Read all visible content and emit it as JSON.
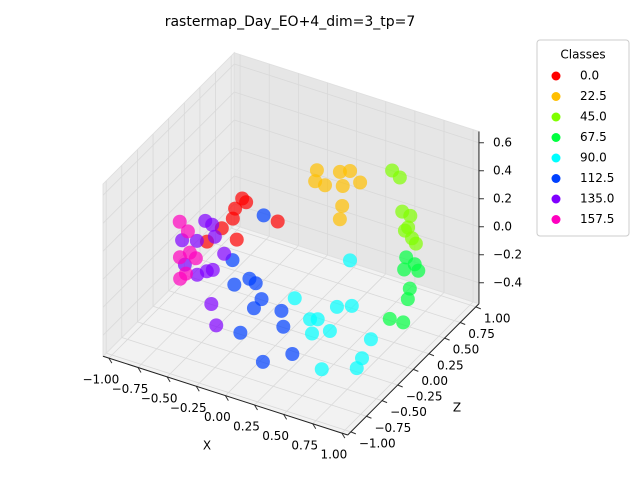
{
  "chart_data": {
    "type": "scatter3d",
    "title": "rastermap_Day_EO+4_dim=3_tp=7",
    "xlabel": "X",
    "ylabel": "Z",
    "xlim": [
      -1.05,
      1.05
    ],
    "ylim": [
      -1.05,
      1.05
    ],
    "zlim": [
      -0.55,
      0.68
    ],
    "xticks": [
      {
        "value": -1,
        "label": "−1.00"
      },
      {
        "value": -0.75,
        "label": "−0.75"
      },
      {
        "value": -0.5,
        "label": "−0.50"
      },
      {
        "value": -0.25,
        "label": "−0.25"
      },
      {
        "value": 0,
        "label": "0.00"
      },
      0.25,
      {
        "value": 0.5,
        "label": "0.50"
      },
      0.75,
      {
        "value": 1,
        "label": "1.00"
      }
    ],
    "yticks": [
      {
        "value": -1,
        "label": "−1.00"
      },
      {
        "value": -0.75,
        "label": "−0.75"
      },
      {
        "value": -0.5,
        "label": "−0.50"
      },
      {
        "value": -0.25,
        "label": "−0.25"
      },
      {
        "value": 0,
        "label": "0.00"
      },
      0.25,
      {
        "value": 0.5,
        "label": "0.50"
      },
      0.75,
      {
        "value": 1,
        "label": "1.00"
      }
    ],
    "zticks": [
      {
        "value": -0.4,
        "label": "−0.4"
      },
      {
        "value": -0.2,
        "label": "−0.2"
      },
      {
        "value": 0,
        "label": "0.0"
      },
      0.2,
      0.4,
      0.6
    ],
    "grid": true,
    "legend_title": "Classes",
    "legend_position": "upper-right-outside",
    "series": [
      {
        "name": "0.0",
        "color": "#ff0000",
        "x": [
          -0.58,
          -0.56,
          -0.53,
          -0.51,
          -0.53,
          -0.71,
          -0.2,
          -0.61
        ],
        "y": [
          0.3,
          0.15,
          0.27,
          0.02,
          0.12,
          -0.02,
          0.16,
          0.03
        ],
        "z": [
          0.1,
          0.1,
          0.1,
          0.1,
          -0.1,
          -0.1,
          0.1,
          0
        ]
      },
      {
        "name": "22.5",
        "color": "#ffbf00",
        "x": [
          0.04,
          0.2,
          0.26,
          0.19,
          0.31,
          0.4,
          0.3,
          0.28,
          0.1
        ],
        "y": [
          0.34,
          0.41,
          0.46,
          0.19,
          0.25,
          0.36,
          0.26,
          0.26,
          0.2
        ],
        "z": [
          0.45,
          0.45,
          0.45,
          0.45,
          0.45,
          0.45,
          0.3,
          0.2,
          0.45
        ]
      },
      {
        "name": "45.0",
        "color": "#80ff00",
        "x": [
          0.53,
          0.58,
          0.59,
          0.67,
          0.64,
          0.69,
          0.75,
          0.64
        ],
        "y": [
          0.63,
          0.66,
          0.68,
          0.66,
          0.63,
          0.65,
          0.6,
          0.68
        ],
        "z": [
          0.45,
          0.4,
          0.15,
          0.15,
          0.05,
          0,
          0,
          0.05
        ]
      },
      {
        "name": "67.5",
        "color": "#00ff40",
        "x": [
          0.64,
          0.74,
          0.66,
          0.76,
          0.73,
          0.74,
          0.66,
          0.77
        ],
        "y": [
          0.65,
          0.6,
          0.58,
          0.62,
          0.54,
          0.49,
          0.35,
          0.36
        ],
        "z": [
          -0.15,
          -0.15,
          -0.2,
          -0.2,
          -0.3,
          -0.35,
          -0.45,
          -0.45
        ]
      },
      {
        "name": "90.0",
        "color": "#00ffff",
        "x": [
          0.34,
          0,
          0.33,
          0.42,
          0.19,
          0.24,
          0.35,
          0.25,
          0.67,
          0.69,
          0.72,
          0.5
        ],
        "y": [
          0.31,
          0.06,
          0.12,
          0.19,
          -0.05,
          -0.02,
          -0.03,
          -0.13,
          0.03,
          -0.15,
          -0.29,
          -0.44
        ],
        "z": [
          -0.1,
          -0.35,
          -0.35,
          -0.35,
          -0.4,
          -0.4,
          -0.45,
          -0.45,
          -0.45,
          -0.5,
          -0.5,
          -0.5
        ]
      },
      {
        "name": "112.5",
        "color": "#0040ff",
        "x": [
          -0.24,
          -0.47,
          -0.33,
          -0.26,
          -0.39,
          -0.21,
          -0.2,
          -0.05,
          0.02,
          -0.22,
          0.21,
          0.07
        ],
        "y": [
          0.01,
          -0.06,
          -0.05,
          -0.08,
          -0.18,
          -0.08,
          -0.22,
          -0.06,
          -0.16,
          -0.4,
          -0.37,
          -0.58
        ],
        "z": [
          0.2,
          -0.15,
          -0.25,
          -0.25,
          -0.25,
          -0.35,
          -0.35,
          -0.4,
          -0.45,
          -0.45,
          -0.5,
          -0.5
        ]
      },
      {
        "name": "135.0",
        "color": "#8000ff",
        "x": [
          -0.72,
          -0.65,
          -0.6,
          -0.69,
          -0.79,
          -0.52,
          -0.75,
          -0.58,
          -0.61,
          -0.65,
          -0.55,
          -0.47
        ],
        "y": [
          -0.03,
          -0.05,
          -0.1,
          -0.22,
          -0.27,
          -0.1,
          -0.3,
          -0.17,
          -0.21,
          -0.29,
          -0.25,
          -0.32
        ],
        "z": [
          0.05,
          0.05,
          0,
          0,
          0,
          -0.1,
          -0.15,
          -0.2,
          -0.2,
          -0.2,
          -0.4,
          -0.5
        ]
      },
      {
        "name": "157.5",
        "color": "#ff00bf",
        "x": [
          -0.88,
          -0.81,
          -0.83,
          -0.72,
          -0.73,
          -0.78,
          -0.75
        ],
        "y": [
          -0.14,
          -0.14,
          -0.23,
          -0.18,
          -0.32,
          -0.32,
          -0.22
        ],
        "z": [
          0.05,
          0,
          -0.15,
          -0.15,
          -0.2,
          -0.25,
          -0.1
        ]
      }
    ]
  }
}
